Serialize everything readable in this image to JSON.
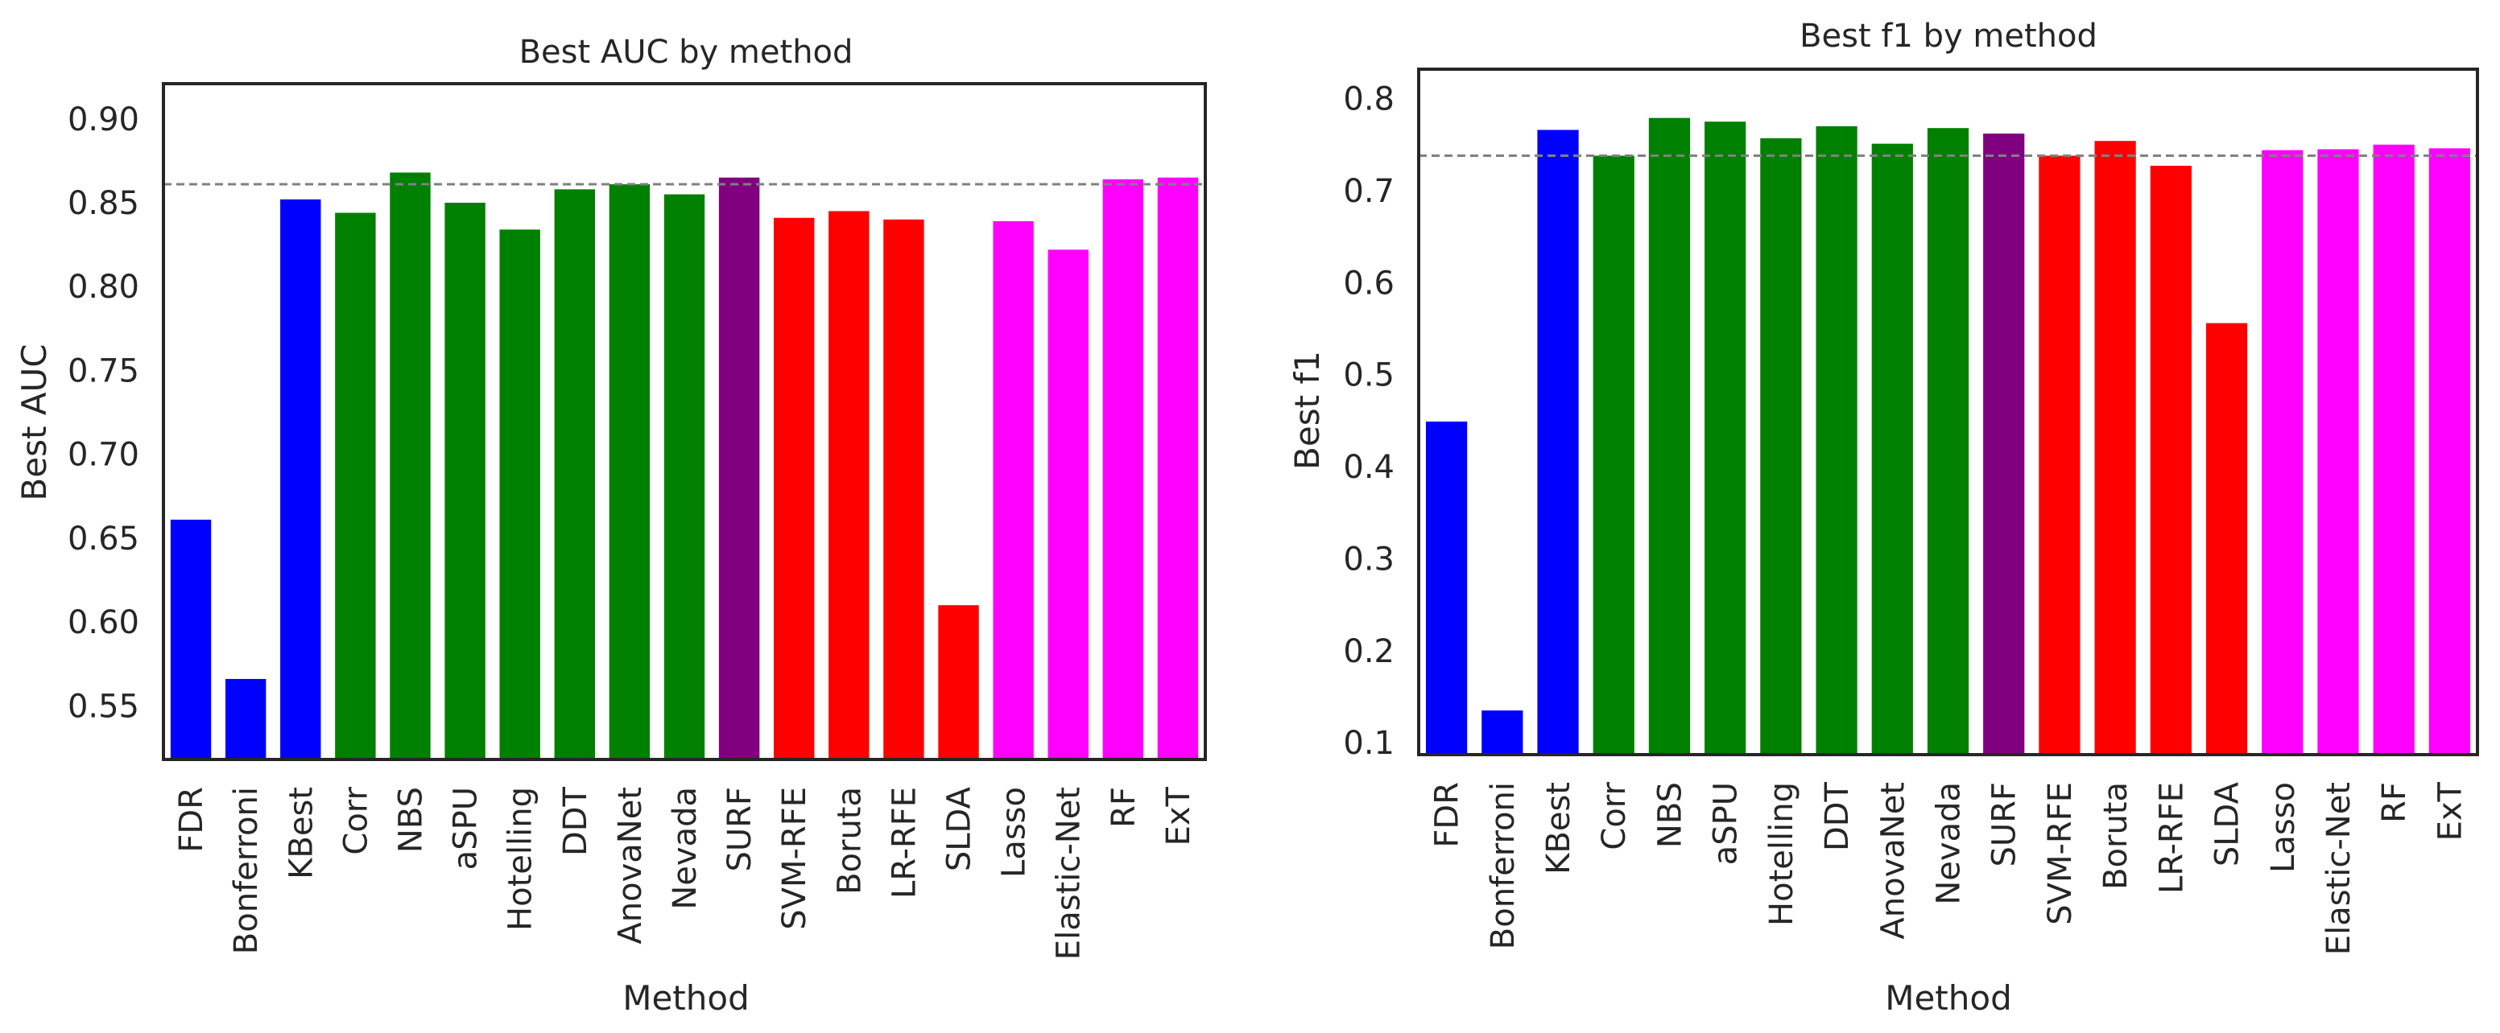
{
  "chart_data": [
    {
      "type": "bar",
      "title": "Best AUC by method",
      "xlabel": "Method",
      "ylabel": "Best AUC",
      "ylim": [
        0.518,
        0.921
      ],
      "yticks": [
        "0.55",
        "0.60",
        "0.65",
        "0.70",
        "0.75",
        "0.80",
        "0.85",
        "0.90"
      ],
      "reference_line": 0.861,
      "grid": false,
      "categories": [
        "FDR",
        "Bonferroni",
        "KBest",
        "Corr",
        "NBS",
        "aSPU",
        "Hotelling",
        "DDT",
        "AnovaNet",
        "Nevada",
        "SURF",
        "SVM-RFE",
        "Boruta",
        "LR-RFE",
        "SLDA",
        "Lasso",
        "Elastic-Net",
        "RF",
        "ExT"
      ],
      "values": [
        0.661,
        0.566,
        0.852,
        0.844,
        0.868,
        0.85,
        0.834,
        0.858,
        0.861,
        0.855,
        0.865,
        0.841,
        0.845,
        0.84,
        0.61,
        0.839,
        0.822,
        0.864,
        0.865
      ],
      "colors": [
        "#0000ff",
        "#0000ff",
        "#0000ff",
        "#008000",
        "#008000",
        "#008000",
        "#008000",
        "#008000",
        "#008000",
        "#008000",
        "#800080",
        "#ff0000",
        "#ff0000",
        "#ff0000",
        "#ff0000",
        "#ff00ff",
        "#ff00ff",
        "#ff00ff",
        "#ff00ff"
      ]
    },
    {
      "type": "bar",
      "title": "Best f1 by method",
      "xlabel": "Method",
      "ylabel": "Best f1",
      "ylim": [
        0.087,
        0.832
      ],
      "yticks": [
        "0.1",
        "0.2",
        "0.3",
        "0.4",
        "0.5",
        "0.6",
        "0.7",
        "0.8"
      ],
      "reference_line": 0.738,
      "grid": false,
      "categories": [
        "FDR",
        "Bonferroni",
        "KBest",
        "Corr",
        "NBS",
        "aSPU",
        "Hotelling",
        "DDT",
        "AnovaNet",
        "Nevada",
        "SURF",
        "SVM-RFE",
        "Boruta",
        "LR-RFE",
        "SLDA",
        "Lasso",
        "Elastic-Net",
        "RF",
        "ExT"
      ],
      "values": [
        0.449,
        0.135,
        0.766,
        0.738,
        0.779,
        0.775,
        0.757,
        0.77,
        0.751,
        0.768,
        0.762,
        0.738,
        0.754,
        0.727,
        0.556,
        0.744,
        0.745,
        0.75,
        0.746
      ],
      "colors": [
        "#0000ff",
        "#0000ff",
        "#0000ff",
        "#008000",
        "#008000",
        "#008000",
        "#008000",
        "#008000",
        "#008000",
        "#008000",
        "#800080",
        "#ff0000",
        "#ff0000",
        "#ff0000",
        "#ff0000",
        "#ff00ff",
        "#ff00ff",
        "#ff00ff",
        "#ff00ff"
      ]
    }
  ]
}
